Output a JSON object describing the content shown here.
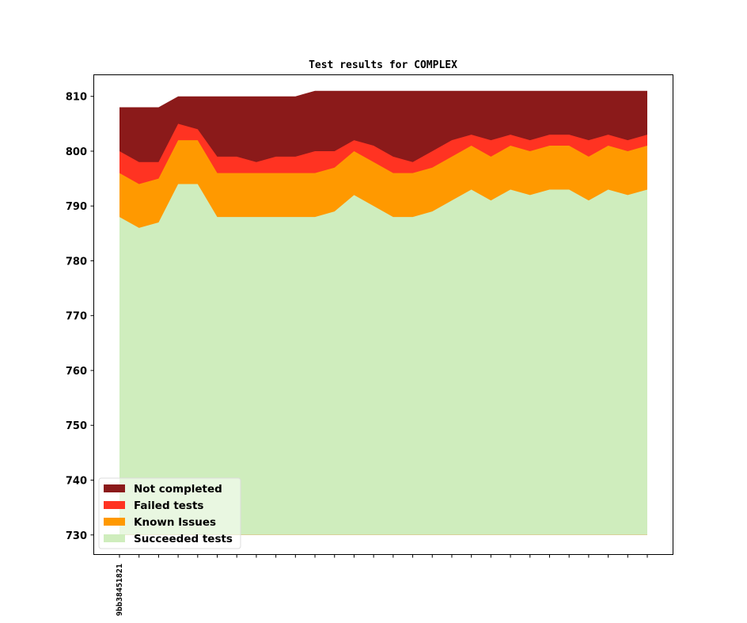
{
  "chart_data": {
    "type": "area",
    "stacked": true,
    "title": "Test results for COMPLEX",
    "xlabel": "",
    "ylabel": "",
    "ylim": [
      726.5,
      814
    ],
    "yticks": [
      730,
      740,
      750,
      760,
      770,
      780,
      790,
      800,
      810
    ],
    "x_tick_labels": [
      "9bb38451821"
    ],
    "x_tick_count": 28,
    "baseline": 730,
    "grid": false,
    "legend_position": "lower-left",
    "series": [
      {
        "name": "Succeeded tests",
        "color": "#cfedbd",
        "values": [
          788,
          786,
          787,
          794,
          794,
          788,
          788,
          788,
          788,
          788,
          788,
          789,
          792,
          790,
          788,
          788,
          789,
          791,
          793,
          791,
          793,
          792,
          793,
          793,
          791,
          793,
          792,
          793
        ]
      },
      {
        "name": "Known Issues",
        "color": "#ff9900",
        "values": [
          796,
          794,
          795,
          802,
          802,
          796,
          796,
          796,
          796,
          796,
          796,
          797,
          800,
          798,
          796,
          796,
          797,
          799,
          801,
          799,
          801,
          800,
          801,
          801,
          799,
          801,
          800,
          801
        ]
      },
      {
        "name": "Failed tests",
        "color": "#ff3322",
        "values": [
          800,
          798,
          798,
          805,
          804,
          799,
          799,
          798,
          799,
          799,
          800,
          800,
          802,
          801,
          799,
          798,
          800,
          802,
          803,
          802,
          803,
          802,
          803,
          803,
          802,
          803,
          802,
          803
        ]
      },
      {
        "name": "Not completed",
        "color": "#8b1a1a",
        "values": [
          808,
          808,
          808,
          810,
          810,
          810,
          810,
          810,
          810,
          810,
          811,
          811,
          811,
          811,
          811,
          811,
          811,
          811,
          811,
          811,
          811,
          811,
          811,
          811,
          811,
          811,
          811,
          811
        ]
      }
    ],
    "legend_order": [
      "Not completed",
      "Failed tests",
      "Known Issues",
      "Succeeded tests"
    ]
  }
}
